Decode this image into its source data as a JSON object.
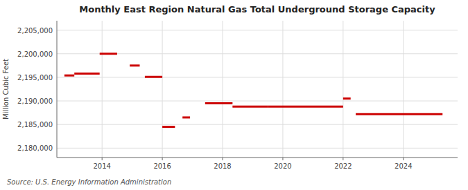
{
  "chart_data": {
    "type": "line",
    "title": "Monthly East Region Natural Gas Total Underground Storage Capacity",
    "y_label": "Million Cubic Feet",
    "source": "Source: U.S. Energy Information Administration",
    "color": "#cc0000",
    "grid": true,
    "xlim": [
      2012.5,
      2025.8
    ],
    "xticks": [
      2014,
      2016,
      2018,
      2020,
      2022,
      2024
    ],
    "ylim": [
      2178000,
      2207000
    ],
    "yticks": [
      {
        "value": 2180000,
        "label": "2,180,000"
      },
      {
        "value": 2185000,
        "label": "2,185,000"
      },
      {
        "value": 2190000,
        "label": "2,190,000"
      },
      {
        "value": 2195000,
        "label": "2,195,000"
      },
      {
        "value": 2200000,
        "label": "2,200,000"
      },
      {
        "value": 2205000,
        "label": "2,205,000"
      }
    ],
    "x": [
      2012.75,
      2013.08,
      null,
      2013.08,
      2013.92,
      null,
      2013.92,
      2014.5,
      null,
      2014.92,
      2015.25,
      null,
      2015.42,
      2016.0,
      null,
      2016.0,
      2016.42,
      null,
      2016.67,
      2016.92,
      null,
      2017.42,
      2018.33,
      null,
      2018.33,
      2019.5,
      null,
      2019.5,
      2022.0,
      null,
      2022.0,
      2022.25,
      null,
      2022.42,
      2025.3
    ],
    "values": [
      2195400,
      2195400,
      null,
      2195800,
      2195800,
      null,
      2200000,
      2200000,
      null,
      2197500,
      2197500,
      null,
      2195100,
      2195100,
      null,
      2184500,
      2184500,
      null,
      2186500,
      2186500,
      null,
      2189500,
      2189500,
      null,
      2188800,
      2188800,
      null,
      2188800,
      2188800,
      null,
      2190500,
      2190500,
      null,
      2187200,
      2187200
    ]
  }
}
